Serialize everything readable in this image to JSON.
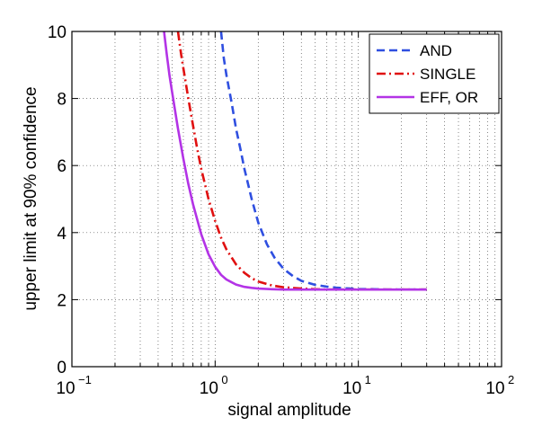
{
  "chart_data": {
    "type": "line",
    "title": "",
    "xlabel": "signal amplitude",
    "ylabel": "upper limit at 90% confidence",
    "xscale": "log",
    "xlim": [
      0.1,
      100
    ],
    "ylim": [
      0,
      10
    ],
    "grid": true,
    "legend_position": "top-right",
    "x_tick_labels": [
      {
        "base": "10",
        "exp": "−1",
        "value": 0.1
      },
      {
        "base": "10",
        "exp": "0",
        "value": 1
      },
      {
        "base": "10",
        "exp": "1",
        "value": 10
      },
      {
        "base": "10",
        "exp": "2",
        "value": 100
      }
    ],
    "y_tick_labels": [
      "0",
      "2",
      "4",
      "6",
      "8",
      "10"
    ],
    "y_ticks": [
      0,
      2,
      4,
      6,
      8,
      10
    ],
    "series": [
      {
        "name": "AND",
        "color": "#2F4FE0",
        "style": "dashed",
        "x": [
          1.1,
          1.15,
          1.2,
          1.3,
          1.4,
          1.5,
          1.6,
          1.8,
          2.0,
          2.3,
          2.6,
          3.0,
          3.5,
          4.0,
          5.0,
          6.0,
          7.0,
          8.0,
          10,
          13,
          16,
          20,
          25,
          30
        ],
        "y": [
          10.0,
          9.2,
          8.7,
          7.9,
          7.1,
          6.5,
          5.9,
          5.0,
          4.3,
          3.65,
          3.25,
          2.92,
          2.7,
          2.56,
          2.44,
          2.39,
          2.36,
          2.34,
          2.32,
          2.31,
          2.3,
          2.3,
          2.3,
          2.3
        ]
      },
      {
        "name": "SINGLE",
        "color": "#E01010",
        "style": "dashdot",
        "x": [
          0.55,
          0.58,
          0.6,
          0.65,
          0.7,
          0.75,
          0.8,
          0.9,
          1.0,
          1.1,
          1.2,
          1.4,
          1.6,
          1.8,
          2.0,
          2.5,
          3.0,
          4.0,
          5.0,
          6.0,
          8.0,
          10,
          15,
          20,
          30
        ],
        "y": [
          10.0,
          9.3,
          8.9,
          8.0,
          7.2,
          6.5,
          5.9,
          5.0,
          4.35,
          3.85,
          3.5,
          3.05,
          2.8,
          2.64,
          2.54,
          2.42,
          2.37,
          2.33,
          2.31,
          2.3,
          2.3,
          2.3,
          2.3,
          2.3,
          2.3
        ]
      },
      {
        "name": "EFF, OR",
        "color": "#B333E6",
        "style": "solid",
        "x": [
          0.44,
          0.46,
          0.48,
          0.5,
          0.55,
          0.6,
          0.65,
          0.7,
          0.8,
          0.9,
          1.0,
          1.1,
          1.2,
          1.4,
          1.6,
          1.8,
          2.0,
          2.5,
          3.0,
          4.0,
          5.0,
          7.0,
          10,
          15,
          20,
          30
        ],
        "y": [
          10.0,
          9.3,
          8.7,
          8.2,
          7.1,
          6.2,
          5.45,
          4.85,
          3.95,
          3.35,
          2.98,
          2.74,
          2.6,
          2.45,
          2.38,
          2.35,
          2.33,
          2.31,
          2.3,
          2.3,
          2.3,
          2.3,
          2.3,
          2.3,
          2.3,
          2.3
        ]
      }
    ],
    "legend": {
      "entries": [
        "AND",
        "SINGLE",
        "EFF, OR"
      ]
    }
  }
}
